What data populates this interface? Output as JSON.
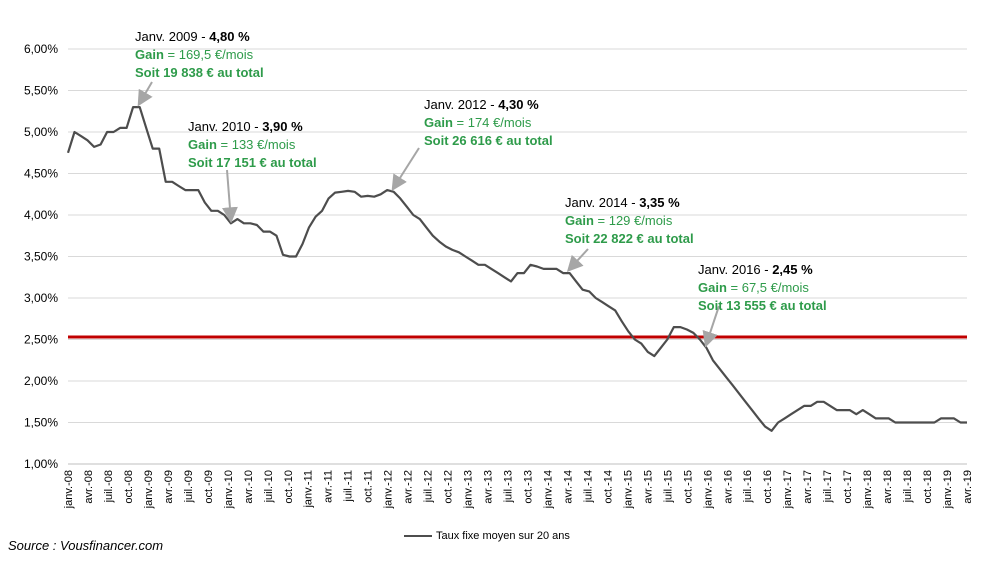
{
  "chart_data": {
    "type": "line",
    "ylim": [
      1.0,
      6.0
    ],
    "y_ticks": [
      "1,00%",
      "1,50%",
      "2,00%",
      "2,50%",
      "3,00%",
      "3,50%",
      "4,00%",
      "4,50%",
      "5,00%",
      "5,50%",
      "6,00%"
    ],
    "x_tick_labels": [
      "janv.-08",
      "avr.-08",
      "juil.-08",
      "oct.-08",
      "janv.-09",
      "avr.-09",
      "juil.-09",
      "oct.-09",
      "janv.-10",
      "avr.-10",
      "juil.-10",
      "oct.-10",
      "janv.-11",
      "avr.-11",
      "juil.-11",
      "oct.-11",
      "janv.-12",
      "avr.-12",
      "juil.-12",
      "oct.-12",
      "janv.-13",
      "avr.-13",
      "juil.-13",
      "oct.-13",
      "janv.-14",
      "avr.-14",
      "juil.-14",
      "oct.-14",
      "janv.-15",
      "avr.-15",
      "juil.-15",
      "oct.-15",
      "janv.-16",
      "avr.-16",
      "juil.-16",
      "oct.-16",
      "janv.-17",
      "avr.-17",
      "juil.-17",
      "oct.-17",
      "janv.-18",
      "avr.-18",
      "juil.-18",
      "oct.-18",
      "janv.-19",
      "avr.-19"
    ],
    "series": [
      {
        "name": "Taux fixe moyen sur 20 ans",
        "color": "#4d4d4d",
        "values": [
          4.75,
          5.0,
          4.95,
          4.9,
          4.82,
          4.85,
          5.0,
          5.0,
          5.05,
          5.05,
          5.3,
          5.3,
          5.05,
          4.8,
          4.8,
          4.4,
          4.4,
          4.35,
          4.3,
          4.3,
          4.3,
          4.15,
          4.05,
          4.05,
          4.0,
          3.9,
          3.95,
          3.9,
          3.9,
          3.88,
          3.8,
          3.8,
          3.75,
          3.52,
          3.5,
          3.5,
          3.65,
          3.85,
          3.98,
          4.05,
          4.2,
          4.27,
          4.28,
          4.29,
          4.28,
          4.22,
          4.23,
          4.22,
          4.25,
          4.3,
          4.28,
          4.2,
          4.1,
          4.0,
          3.95,
          3.85,
          3.75,
          3.68,
          3.62,
          3.58,
          3.55,
          3.5,
          3.45,
          3.4,
          3.4,
          3.35,
          3.3,
          3.25,
          3.2,
          3.3,
          3.3,
          3.4,
          3.38,
          3.35,
          3.35,
          3.35,
          3.3,
          3.3,
          3.2,
          3.1,
          3.08,
          3.0,
          2.95,
          2.9,
          2.85,
          2.72,
          2.6,
          2.5,
          2.45,
          2.35,
          2.3,
          2.4,
          2.5,
          2.65,
          2.65,
          2.62,
          2.58,
          2.5,
          2.4,
          2.25,
          2.15,
          2.05,
          1.95,
          1.85,
          1.75,
          1.65,
          1.55,
          1.45,
          1.4,
          1.5,
          1.55,
          1.6,
          1.65,
          1.7,
          1.7,
          1.75,
          1.75,
          1.7,
          1.65,
          1.65,
          1.65,
          1.6,
          1.65,
          1.6,
          1.55,
          1.55,
          1.55,
          1.5,
          1.5,
          1.5,
          1.5,
          1.5,
          1.5,
          1.5,
          1.55,
          1.55,
          1.55,
          1.5,
          1.5
        ]
      }
    ],
    "reference_line": {
      "value": 2.53,
      "color": "#c00000"
    },
    "grid": true,
    "legend": "bottom",
    "annotations": [
      {
        "date": "Janv. 2009 - ",
        "rate": "4,80 %",
        "gain_label": "Gain",
        "gain_value": " = 169,5 €/mois",
        "total": "Soit 19 838 € au total",
        "arrow_to_index": 11
      },
      {
        "date": "Janv. 2010 - ",
        "rate": "3,90 %",
        "gain_label": "Gain",
        "gain_value": " = 133 €/mois",
        "total": "Soit 17 151 € au total",
        "arrow_to_index": 25
      },
      {
        "date": "Janv. 2012 - ",
        "rate": "4,30 %",
        "gain_label": "Gain",
        "gain_value": " = 174 €/mois",
        "total": "Soit 26 616 € au total",
        "arrow_to_index": 50
      },
      {
        "date": "Janv. 2014 - ",
        "rate": "3,35 %",
        "gain_label": "Gain",
        "gain_value": " = 129 €/mois",
        "total": "Soit 22 822 € au total",
        "arrow_to_index": 77
      },
      {
        "date": "Janv. 2016 - ",
        "rate": "2,45 %",
        "gain_label": "Gain",
        "gain_value": " = 67,5 €/mois",
        "total": "Soit 13 555 € au total",
        "arrow_to_index": 98
      }
    ]
  },
  "source": "Source : Vousfinancer.com",
  "legend_label": "Taux fixe moyen sur 20 ans"
}
